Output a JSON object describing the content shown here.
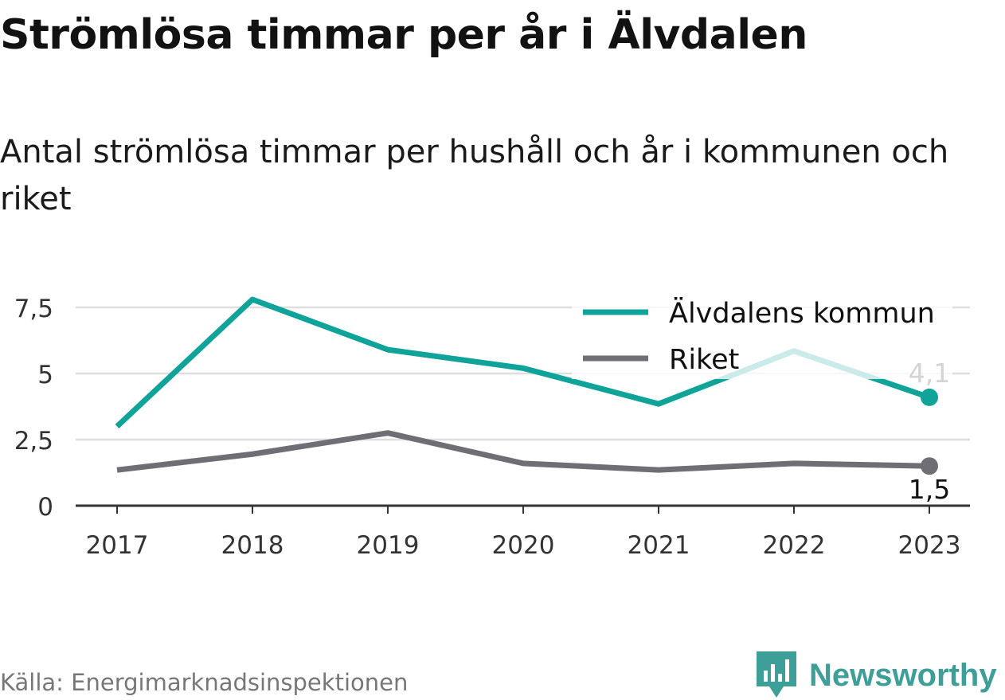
{
  "title": "Strömlösa timmar per år i Älvdalen",
  "subtitle": "Antal strömlösa timmar per hushåll och år i kommunen och riket",
  "source": "Källa: Energimarknadsinspektionen",
  "brand": {
    "name": "Newsworthy",
    "color": "#3e9e98",
    "icon": "newsworthy-logo-icon"
  },
  "chart_data": {
    "type": "line",
    "x": [
      "2017",
      "2018",
      "2019",
      "2020",
      "2021",
      "2022",
      "2023"
    ],
    "yticks": [
      0,
      2.5,
      5,
      7.5
    ],
    "ytick_labels": [
      "0",
      "2,5",
      "5",
      "7,5"
    ],
    "ylim": [
      0,
      8.5
    ],
    "grid": true,
    "legend_position": "top-right",
    "series": [
      {
        "name": "Älvdalens kommun",
        "color": "#0fa399",
        "values": [
          3.0,
          7.8,
          5.9,
          5.2,
          3.85,
          5.85,
          4.1
        ],
        "end_label": "4,1"
      },
      {
        "name": "Riket",
        "color": "#6f6e75",
        "values": [
          1.35,
          1.95,
          2.75,
          1.6,
          1.35,
          1.6,
          1.5
        ],
        "end_label": "1,5"
      }
    ]
  }
}
